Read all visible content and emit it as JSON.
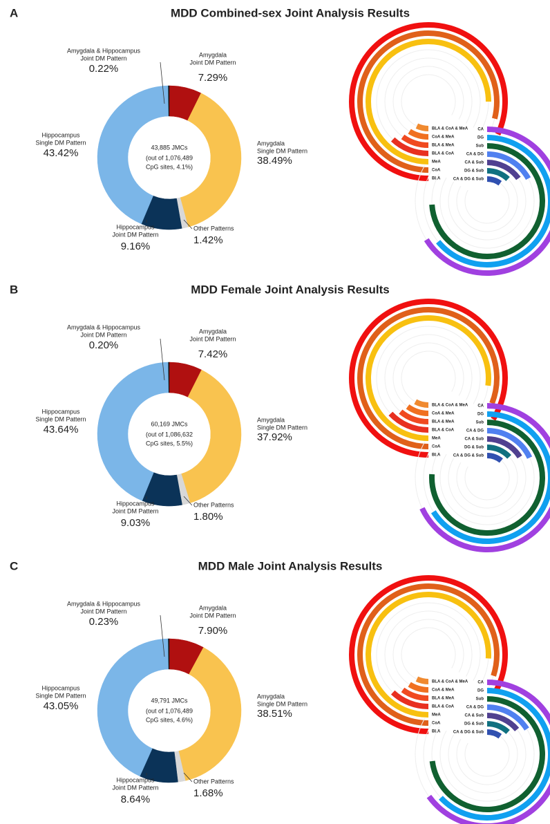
{
  "chart_data": [
    {
      "type": "pie",
      "panel_label": "A",
      "title": "MDD Combined-sex Joint Analysis Results",
      "center_text": [
        "43,885 JMCs",
        "(out of 1,076,489",
        "CpG sites, 4.1%)"
      ],
      "categories": [
        [
          "Amygdala",
          "Joint DM Pattern"
        ],
        [
          "Amygdala",
          "Single DM Pattern"
        ],
        [
          "Other Patterns"
        ],
        [
          "Hippocampus",
          "Joint DM Pattern"
        ],
        [
          "Hippocampus",
          "Single DM Pattern"
        ],
        [
          "Amygdala & Hippocampus",
          "Joint DM Pattern"
        ]
      ],
      "values": [
        7.29,
        38.49,
        1.42,
        9.16,
        43.42,
        0.22
      ],
      "value_labels": [
        "7.29%",
        "38.49%",
        "1.42%",
        "9.16%",
        "43.42%",
        "0.22%"
      ],
      "colors": [
        "#b01010",
        "#f9c34f",
        "#d8d8d8",
        "#0b3358",
        "#7bb6e8",
        "#111111"
      ]
    },
    {
      "type": "radial_bar",
      "start": "bottom",
      "xlim": [
        0,
        100
      ],
      "categories": [
        "BLA",
        "CoA",
        "MeA",
        "BLA & CoA",
        "BLA & MeA",
        "CoA & MeA",
        "BLA & CoA & MeA"
      ],
      "values": [
        82,
        79,
        75,
        12,
        10,
        9,
        7
      ],
      "colors": [
        "#f01010",
        "#e0601a",
        "#f8c010",
        "#e83020",
        "#f04a20",
        "#f07020",
        "#f08a30"
      ]
    },
    {
      "type": "radial_bar",
      "start": "top",
      "xlim": [
        0,
        100
      ],
      "categories": [
        "CA",
        "DG",
        "Sub",
        "CA & DG",
        "CA & Sub",
        "DG & Sub",
        "CA & DG & Sub"
      ],
      "values": [
        66,
        64,
        74,
        17,
        15,
        12,
        10
      ],
      "colors": [
        "#a040e0",
        "#10a0f0",
        "#106030",
        "#5080f0",
        "#504090",
        "#107080",
        "#3050b0"
      ]
    },
    {
      "type": "pie",
      "panel_label": "B",
      "title": "MDD Female Joint Analysis Results",
      "center_text": [
        "60,169 JMCs",
        "(out of 1,086,632",
        "CpG sites, 5.5%)"
      ],
      "categories": [
        [
          "Amygdala",
          "Joint DM Pattern"
        ],
        [
          "Amygdala",
          "Single DM Pattern"
        ],
        [
          "Other Patterns"
        ],
        [
          "Hippocampus",
          "Joint DM Pattern"
        ],
        [
          "Hippocampus",
          "Single DM Pattern"
        ],
        [
          "Amygdala & Hippocampus",
          "Joint DM Pattern"
        ]
      ],
      "values": [
        7.42,
        37.92,
        1.8,
        9.03,
        43.64,
        0.2
      ],
      "value_labels": [
        "7.42%",
        "37.92%",
        "1.80%",
        "9.03%",
        "43.64%",
        "0.20%"
      ],
      "colors": [
        "#b01010",
        "#f9c34f",
        "#d8d8d8",
        "#0b3358",
        "#7bb6e8",
        "#111111"
      ]
    },
    {
      "type": "radial_bar",
      "start": "bottom",
      "xlim": [
        0,
        100
      ],
      "categories": [
        "BLA",
        "CoA",
        "MeA",
        "BLA & CoA",
        "BLA & MeA",
        "CoA & MeA",
        "BLA & CoA & MeA"
      ],
      "values": [
        84,
        81,
        77,
        13,
        11,
        10,
        8
      ],
      "colors": [
        "#f01010",
        "#e0601a",
        "#f8c010",
        "#e83020",
        "#f04a20",
        "#f07020",
        "#f08a30"
      ]
    },
    {
      "type": "radial_bar",
      "start": "top",
      "xlim": [
        0,
        100
      ],
      "categories": [
        "CA",
        "DG",
        "Sub",
        "CA & DG",
        "CA & Sub",
        "DG & Sub",
        "CA & DG & Sub"
      ],
      "values": [
        68,
        66,
        76,
        18,
        16,
        13,
        11
      ],
      "colors": [
        "#a040e0",
        "#10a0f0",
        "#106030",
        "#5080f0",
        "#504090",
        "#107080",
        "#3050b0"
      ]
    },
    {
      "type": "pie",
      "panel_label": "C",
      "title": "MDD Male Joint Analysis Results",
      "center_text": [
        "49,791 JMCs",
        "(out of 1,076,489",
        "CpG sites, 4.6%)"
      ],
      "categories": [
        [
          "Amygdala",
          "Joint DM Pattern"
        ],
        [
          "Amygdala",
          "Single DM Pattern"
        ],
        [
          "Other Patterns"
        ],
        [
          "Hippocampus",
          "Joint DM Pattern"
        ],
        [
          "Hippocampus",
          "Single DM Pattern"
        ],
        [
          "Amygdala & Hippocampus",
          "Joint DM Pattern"
        ]
      ],
      "values": [
        7.9,
        38.51,
        1.68,
        8.64,
        43.05,
        0.23
      ],
      "value_labels": [
        "7.90%",
        "38.51%",
        "1.68%",
        "8.64%",
        "43.05%",
        "0.23%"
      ],
      "colors": [
        "#b01010",
        "#f9c34f",
        "#d8d8d8",
        "#0b3358",
        "#7bb6e8",
        "#111111"
      ]
    },
    {
      "type": "radial_bar",
      "start": "bottom",
      "xlim": [
        0,
        100
      ],
      "categories": [
        "BLA",
        "CoA",
        "MeA",
        "BLA & CoA",
        "BLA & MeA",
        "CoA & MeA",
        "BLA & CoA & MeA"
      ],
      "values": [
        83,
        80,
        76,
        12,
        10,
        9,
        7
      ],
      "colors": [
        "#f01010",
        "#e0601a",
        "#f8c010",
        "#e83020",
        "#f04a20",
        "#f07020",
        "#f08a30"
      ]
    },
    {
      "type": "radial_bar",
      "start": "top",
      "xlim": [
        0,
        100
      ],
      "categories": [
        "CA",
        "DG",
        "Sub",
        "CA & DG",
        "CA & Sub",
        "DG & Sub",
        "CA & DG & Sub"
      ],
      "values": [
        65,
        63,
        73,
        16,
        14,
        12,
        10
      ],
      "colors": [
        "#a040e0",
        "#10a0f0",
        "#106030",
        "#5080f0",
        "#504090",
        "#107080",
        "#3050b0"
      ]
    }
  ]
}
